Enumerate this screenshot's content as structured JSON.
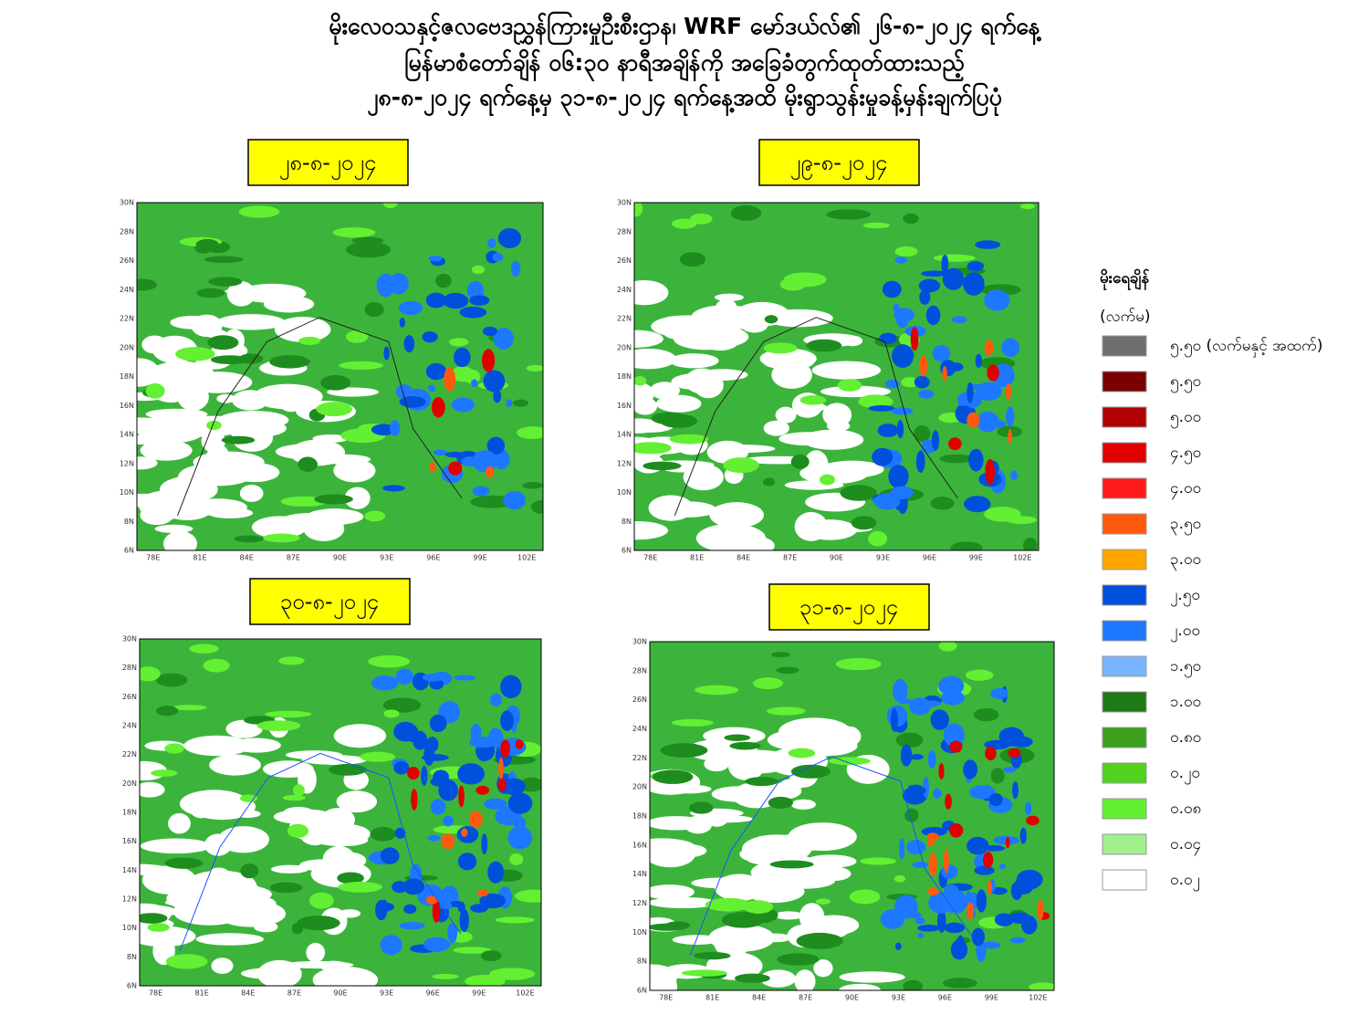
{
  "title": {
    "lines": [
      "မိုးလေဝသနှင့်ဇလဗေဒညွှန်ကြားမှုဦးစီးဌာန၊ WRF မော်ဒယ်လ်၏ ၂၆-၈-၂၀၂၄ ရက်နေ့",
      "မြန်မာစံတော်ချိန် ၀၆:၃၀ နာရီအချိန်ကို အခြေခံတွက်ထုတ်ထားသည့်",
      "၂၈-၈-၂၀၂၄ ရက်နေ့မှ ၃၁-၈-၂၀၂၄ ရက်နေ့အထိ မိုးရွာသွန်းမှုခန့်မှန်းချက်ပြပုံ"
    ]
  },
  "map_axes": {
    "lat_labels": [
      "30N",
      "28N",
      "26N",
      "24N",
      "22N",
      "20N",
      "18N",
      "16N",
      "14N",
      "12N",
      "10N",
      "8N",
      "6N"
    ],
    "lon_labels": [
      "78E",
      "81E",
      "84E",
      "87E",
      "90E",
      "93E",
      "96E",
      "99E",
      "102E"
    ]
  },
  "panels": [
    {
      "date": "၂၈-၈-၂၀၂၄"
    },
    {
      "date": "၂၉-၈-၂၀၂၄"
    },
    {
      "date": "၃၀-၈-၂၀၂၄"
    },
    {
      "date": "၃၁-၈-၂၀၂၄"
    }
  ],
  "legend": {
    "title": "မိုးရေချိန်",
    "unit": "(လက်မ)",
    "items": [
      {
        "label": "၅.၅၀ (လက်မနှင့် အထက်)",
        "color": "#6e6e6e"
      },
      {
        "label": "၅.၅၀",
        "color": "#7a0000"
      },
      {
        "label": "၅.၀၀",
        "color": "#b00000"
      },
      {
        "label": "၄.၅၀",
        "color": "#e00000"
      },
      {
        "label": "၄.၀၀",
        "color": "#ff1a1a"
      },
      {
        "label": "၃.၅၀",
        "color": "#ff5a10"
      },
      {
        "label": "၃.၀၀",
        "color": "#ffa500"
      },
      {
        "label": "၂.၅၀",
        "color": "#0050dc"
      },
      {
        "label": "၂.၀၀",
        "color": "#1e78ff"
      },
      {
        "label": "၁.၅၀",
        "color": "#78b4ff"
      },
      {
        "label": "၁.၀၀",
        "color": "#1e7a14"
      },
      {
        "label": "၀.၈၀",
        "color": "#3ca01e"
      },
      {
        "label": "၀.၂၀",
        "color": "#50d21e"
      },
      {
        "label": "၀.၀၈",
        "color": "#64f032"
      },
      {
        "label": "၀.၀၄",
        "color": "#a0f08c"
      },
      {
        "label": "၀.၀၂",
        "color": "#ffffff"
      }
    ]
  }
}
